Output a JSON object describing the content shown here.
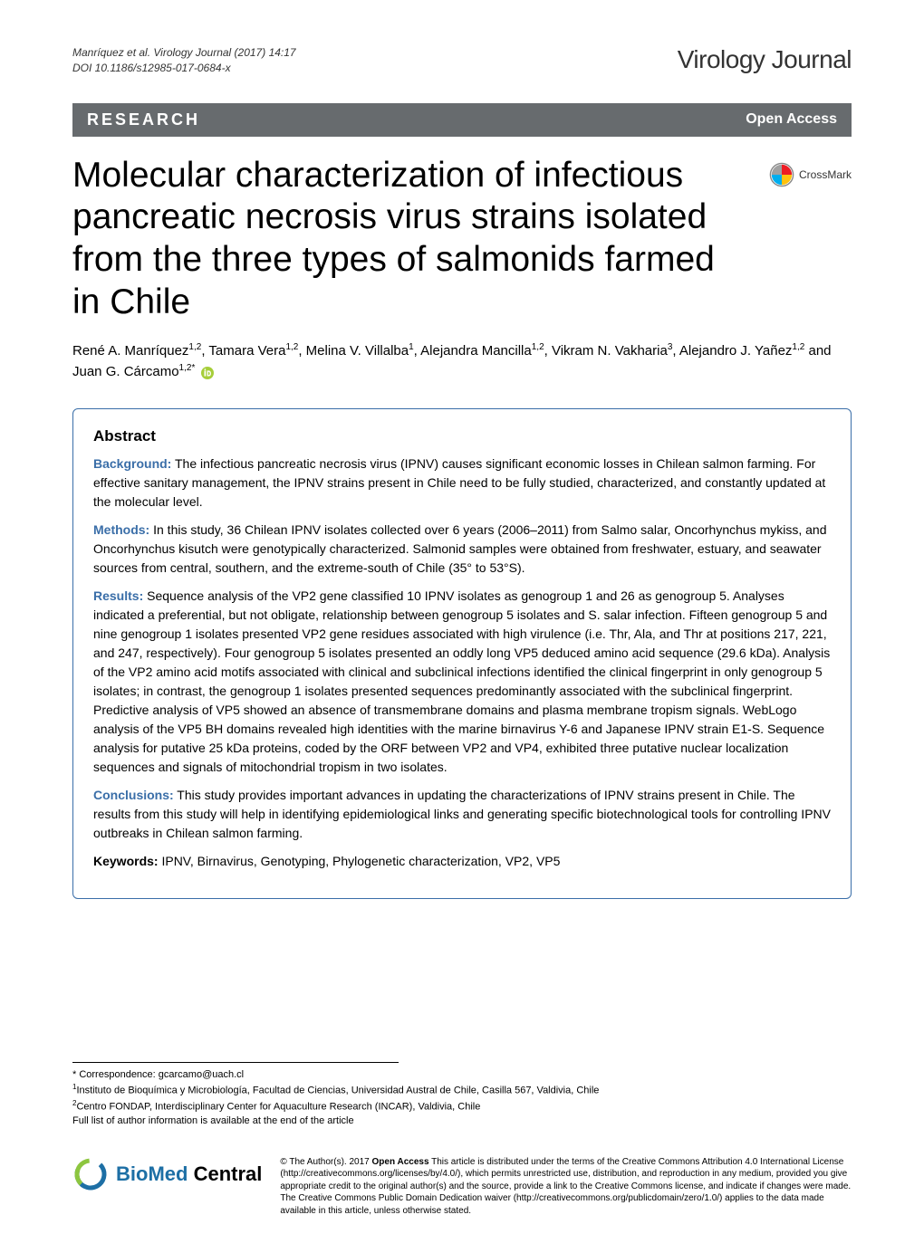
{
  "citation": {
    "line1": "Manríquez et al. Virology Journal  (2017) 14:17",
    "line2": "DOI 10.1186/s12985-017-0684-x"
  },
  "journal_brand": "Virology Journal",
  "banner": {
    "left": "RESEARCH",
    "right": "Open Access"
  },
  "article_title": "Molecular characterization of infectious pancreatic necrosis virus strains isolated from the three types of salmonids farmed in Chile",
  "crossmark_label": "CrossMark",
  "authors_html": "René A. Manríquez<sup>1,2</sup>, Tamara Vera<sup>1,2</sup>, Melina V. Villalba<sup>1</sup>, Alejandra Mancilla<sup>1,2</sup>, Vikram N. Vakharia<sup>3</sup>, Alejandro J. Yañez<sup>1,2</sup> and Juan G. Cárcamo<sup>1,2*</sup>",
  "abstract": {
    "heading": "Abstract",
    "background": {
      "label": "Background:",
      "text": " The infectious pancreatic necrosis virus (IPNV) causes significant economic losses in Chilean salmon farming. For effective sanitary management, the IPNV strains present in Chile need to be fully studied, characterized, and constantly updated at the molecular level."
    },
    "methods": {
      "label": "Methods:",
      "text": " In this study, 36 Chilean IPNV isolates collected over 6 years (2006–2011) from Salmo salar, Oncorhynchus mykiss, and Oncorhynchus kisutch were genotypically characterized. Salmonid samples were obtained from freshwater, estuary, and seawater sources from central, southern, and the extreme-south of Chile (35° to 53°S)."
    },
    "results": {
      "label": "Results:",
      "text": " Sequence analysis of the VP2 gene classified 10 IPNV isolates as genogroup 1 and 26 as genogroup 5. Analyses indicated a preferential, but not obligate, relationship between genogroup 5 isolates and S. salar infection. Fifteen genogroup 5 and nine genogroup 1 isolates presented VP2 gene residues associated with high virulence (i.e. Thr, Ala, and Thr at positions 217, 221, and 247, respectively). Four genogroup 5 isolates presented an oddly long VP5 deduced amino acid sequence (29.6 kDa). Analysis of the VP2 amino acid motifs associated with clinical and subclinical infections identified the clinical fingerprint in only genogroup 5 isolates; in contrast, the genogroup 1 isolates presented sequences predominantly associated with the subclinical fingerprint. Predictive analysis of VP5 showed an absence of transmembrane domains and plasma membrane tropism signals. WebLogo analysis of the VP5 BH domains revealed high identities with the marine birnavirus Y-6 and Japanese IPNV strain E1-S. Sequence analysis for putative 25 kDa proteins, coded by the ORF between VP2 and VP4, exhibited three putative nuclear localization sequences and signals of mitochondrial tropism in two isolates."
    },
    "conclusions": {
      "label": "Conclusions:",
      "text": " This study provides important advances in updating the characterizations of IPNV strains present in Chile. The results from this study will help in identifying epidemiological links and generating specific biotechnological tools for controlling IPNV outbreaks in Chilean salmon farming."
    },
    "keywords": {
      "label": "Keywords:",
      "text": " IPNV, Birnavirus, Genotyping, Phylogenetic characterization, VP2, VP5"
    }
  },
  "footnotes": {
    "correspondence": "* Correspondence: gcarcamo@uach.cl",
    "affil1": "Instituto de Bioquímica y Microbiología, Facultad de Ciencias, Universidad Austral de Chile, Casilla 567, Valdivia, Chile",
    "affil2": "Centro FONDAP, Interdisciplinary Center for Aquaculture Research (INCAR), Valdivia, Chile",
    "fulllist": "Full list of author information is available at the end of the article"
  },
  "bmc_logo_text": "BioMed Central",
  "license": {
    "prefix": "© The Author(s). 2017 ",
    "bold": "Open Access",
    "rest": " This article is distributed under the terms of the Creative Commons Attribution 4.0 International License (http://creativecommons.org/licenses/by/4.0/), which permits unrestricted use, distribution, and reproduction in any medium, provided you give appropriate credit to the original author(s) and the source, provide a link to the Creative Commons license, and indicate if changes were made. The Creative Commons Public Domain Dedication waiver (http://creativecommons.org/publicdomain/zero/1.0/) applies to the data made available in this article, unless otherwise stated."
  },
  "colors": {
    "banner_bg": "#676b6e",
    "abstract_border": "#3a6ea8",
    "label_color": "#3a6ea8",
    "crossmark_red": "#ed1c24",
    "crossmark_yellow": "#ffc20e",
    "crossmark_blue": "#00aeef",
    "crossmark_gray": "#231f20",
    "orcid_green": "#a6ce39",
    "bmc_blue": "#1d6fa5",
    "bmc_green": "#8dc63f"
  }
}
